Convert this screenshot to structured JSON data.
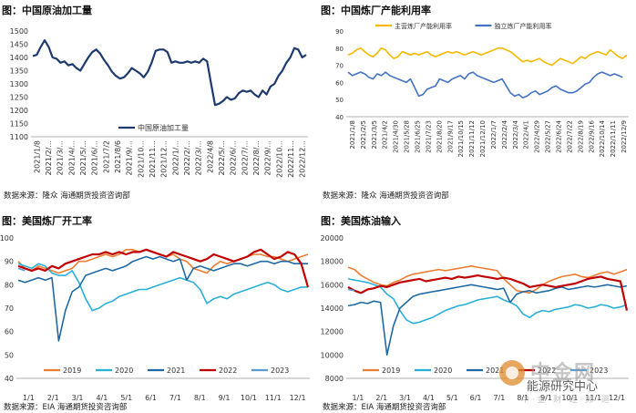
{
  "charts": [
    {
      "heading": "图：中国原油加工量",
      "source": "数据来源：隆众    海通期货投资咨询部",
      "chart_data": {
        "type": "line",
        "ylim": [
          1100,
          1500
        ],
        "yticks": [
          1100,
          1150,
          1200,
          1250,
          1300,
          1350,
          1400,
          1450,
          1500
        ],
        "xticks": [
          "2021/1/8",
          "2021/2/...",
          "2021/3/...",
          "2021/4/...",
          "2021/5/...",
          "2021/6/...",
          "2021/7/2",
          "2021/8/6",
          "2021/9/...",
          "2021/10...",
          "2021/11...",
          "2021/12...",
          "2022/1/...",
          "2022/2/...",
          "2022/3/...",
          "2022/4/8",
          "2022/5/...",
          "2022/6/...",
          "2022/7/...",
          "2022/8/...",
          "2022/9/...",
          "2022/10...",
          "2022/11...",
          "2022/12..."
        ],
        "legend": "bottom",
        "series": [
          {
            "name": "中国原油加工量",
            "color": "#1f3a6e",
            "values": [
              1405,
              1410,
              1440,
              1465,
              1440,
              1400,
              1395,
              1380,
              1385,
              1370,
              1375,
              1360,
              1350,
              1375,
              1400,
              1420,
              1430,
              1415,
              1390,
              1370,
              1345,
              1330,
              1320,
              1325,
              1340,
              1360,
              1350,
              1340,
              1325,
              1345,
              1380,
              1425,
              1430,
              1430,
              1420,
              1380,
              1385,
              1380,
              1380,
              1385,
              1380,
              1385,
              1380,
              1395,
              1385,
              1300,
              1220,
              1225,
              1235,
              1250,
              1240,
              1245,
              1265,
              1275,
              1270,
              1275,
              1260,
              1250,
              1275,
              1260,
              1290,
              1300,
              1330,
              1350,
              1380,
              1400,
              1435,
              1430,
              1400,
              1410
            ]
          }
        ]
      }
    },
    {
      "heading": "图：中国炼厂产能利用率",
      "source": "数据来源：隆众    海通期货投资咨询部",
      "chart_data": {
        "type": "line",
        "ylim": [
          40,
          90
        ],
        "yticks": [
          40,
          50,
          60,
          70,
          80,
          90
        ],
        "xticks": [
          "2021/1/8",
          "2021/2/5",
          "2021/3/5",
          "2021/4/2",
          "2021/4/30",
          "2021/5/28",
          "2021/6/25",
          "2021/7/23",
          "2021/8/20",
          "2021/9/17",
          "2021/10/15",
          "2021/11/12",
          "2021/12/10",
          "2022/1/7",
          "2022/2/4",
          "2022/3/4",
          "2022/4/1",
          "2022/4/29",
          "2022/5/27",
          "2022/6/24",
          "2022/7/22",
          "2022/8/19",
          "2022/9/16",
          "2022/10/14",
          "2022/11/11",
          "2022/12/9"
        ],
        "legend": "top",
        "series": [
          {
            "name": "主营炼厂产能利用率",
            "color": "#f5b800",
            "values": [
              76,
              77,
              79,
              80,
              78,
              76,
              75,
              77,
              80,
              79,
              76,
              74,
              75,
              78,
              77,
              76,
              77,
              76,
              77,
              78,
              76,
              75,
              76,
              77,
              78,
              77,
              78,
              77,
              76,
              77,
              78,
              77,
              76,
              77,
              78,
              79,
              80,
              80,
              79,
              78,
              76,
              74,
              72,
              73,
              72,
              73,
              74,
              72,
              71,
              70,
              72,
              74,
              73,
              72,
              71,
              73,
              75,
              74,
              76,
              77,
              78,
              77,
              76,
              79,
              77,
              75,
              74,
              76
            ]
          },
          {
            "name": "独立炼厂产能利用率",
            "color": "#4472c4",
            "values": [
              66,
              64,
              65,
              66,
              65,
              63,
              62,
              65,
              64,
              66,
              64,
              63,
              62,
              61,
              60,
              62,
              57,
              52,
              53,
              56,
              57,
              58,
              62,
              61,
              60,
              62,
              63,
              64,
              62,
              65,
              66,
              64,
              63,
              62,
              61,
              60,
              61,
              62,
              58,
              54,
              52,
              53,
              51,
              52,
              54,
              55,
              53,
              54,
              55,
              57,
              58,
              56,
              55,
              54,
              54,
              55,
              57,
              59,
              60,
              63,
              65,
              66,
              65,
              64,
              65,
              64,
              63
            ]
          }
        ]
      }
    },
    {
      "heading": "图：美国炼厂开工率",
      "source": "数据来源：EIA    海通期货投资咨询部",
      "chart_data": {
        "type": "line",
        "ylim": [
          40,
          100
        ],
        "yticks": [
          40,
          50,
          60,
          70,
          80,
          90,
          100
        ],
        "xticks": [
          "1/1",
          "2/1",
          "3/1",
          "4/1",
          "5/1",
          "6/1",
          "7/1",
          "8/1",
          "9/1",
          "10/1",
          "11/1",
          "12/1"
        ],
        "legend": "bottom",
        "series": [
          {
            "name": "2019",
            "color": "#ed7d31",
            "values": [
              90,
              87,
              86,
              88,
              87,
              86,
              85,
              86,
              87,
              90,
              90,
              91,
              92,
              93,
              92,
              93,
              95,
              95,
              94,
              95,
              94,
              93,
              92,
              93,
              91,
              90,
              87,
              86,
              85,
              88,
              90,
              89,
              90,
              91,
              92,
              93,
              93,
              92,
              92,
              91,
              90,
              91,
              92,
              93
            ]
          },
          {
            "name": "2020",
            "color": "#29b0d8",
            "values": [
              89,
              88,
              87,
              89,
              88,
              85,
              84,
              84,
              86,
              81,
              74,
              69,
              70,
              72,
              73,
              75,
              76,
              77,
              78,
              78,
              79,
              80,
              81,
              82,
              83,
              82,
              81,
              78,
              72,
              74,
              75,
              74,
              76,
              77,
              78,
              79,
              80,
              81,
              80,
              78,
              77,
              78,
              79,
              79
            ]
          },
          {
            "name": "2021",
            "color": "#1f6aa5",
            "values": [
              82,
              81,
              82,
              83,
              82,
              83,
              56,
              69,
              77,
              79,
              84,
              85,
              86,
              87,
              86,
              87,
              88,
              90,
              91,
              92,
              91,
              92,
              91,
              90,
              91,
              82,
              87,
              88,
              87,
              86,
              87,
              88,
              89,
              89,
              88,
              89,
              90,
              90,
              89,
              90,
              90,
              89,
              89,
              89
            ]
          },
          {
            "name": "2022",
            "color": "#c00000",
            "values": [
              88,
              87,
              86,
              87,
              86,
              88,
              87,
              89,
              90,
              91,
              92,
              93,
              93,
              94,
              93,
              94,
              93,
              94,
              94,
              95,
              94,
              93,
              92,
              94,
              93,
              92,
              91,
              90,
              91,
              93,
              92,
              91,
              90,
              91,
              92,
              94,
              95,
              93,
              91,
              92,
              94,
              93,
              89,
              79
            ]
          },
          {
            "name": "2023",
            "color": "#5b9bd5",
            "values": [
              87,
              86
            ]
          }
        ]
      }
    },
    {
      "heading": "图：美国炼油输入",
      "source": "数据来源：EIA    海通期货投资咨询部",
      "chart_data": {
        "type": "line",
        "ylim": [
          8000,
          20000
        ],
        "yticks": [
          8000,
          10000,
          12000,
          14000,
          16000,
          18000,
          20000
        ],
        "xticks": [
          "1/1",
          "2/1",
          "3/1",
          "4/1",
          "5/1",
          "6/1",
          "7/1",
          "8/1",
          "9/1",
          "10/1",
          "11/1",
          "12/1"
        ],
        "legend": "bottom",
        "series": [
          {
            "name": "2019",
            "color": "#ed7d31",
            "values": [
              17500,
              17300,
              16800,
              16500,
              16200,
              16000,
              15900,
              16200,
              16400,
              16700,
              16900,
              17000,
              17100,
              17200,
              17300,
              17200,
              17300,
              17400,
              17500,
              17600,
              17500,
              17400,
              17300,
              17200,
              16500,
              16000,
              15500,
              15400,
              15300,
              15600,
              16000,
              16300,
              16500,
              16700,
              16800,
              16900,
              16700,
              16600,
              16800,
              17000,
              17100,
              16900,
              17100,
              17300
            ]
          },
          {
            "name": "2020",
            "color": "#29b0d8",
            "values": [
              16500,
              16400,
              16300,
              16200,
              16000,
              15800,
              15200,
              14800,
              13800,
              13000,
              12700,
              12800,
              13000,
              13200,
              13500,
              13800,
              14000,
              14200,
              14300,
              14500,
              14700,
              14800,
              14900,
              15000,
              14700,
              14500,
              14200,
              13500,
              13200,
              13600,
              13800,
              13700,
              13900,
              14000,
              14100,
              14300,
              14200,
              14000,
              14100,
              14300,
              14200,
              14000,
              14100,
              14300
            ]
          },
          {
            "name": "2021",
            "color": "#1f6aa5",
            "values": [
              14200,
              14300,
              14500,
              14400,
              14600,
              14500,
              10000,
              12500,
              14000,
              14500,
              15000,
              15200,
              15300,
              15400,
              15500,
              15600,
              15700,
              15800,
              15900,
              16000,
              15900,
              15800,
              15700,
              15600,
              15700,
              14500,
              15200,
              15400,
              15500,
              15300,
              15400,
              15500,
              15700,
              15800,
              15600,
              15700,
              15800,
              15900,
              15800,
              15900,
              16000,
              15900,
              15800,
              15900
            ]
          },
          {
            "name": "2022",
            "color": "#c00000",
            "values": [
              15800,
              15500,
              15300,
              15600,
              15700,
              15900,
              15800,
              16000,
              16200,
              16300,
              16400,
              16500,
              16300,
              16400,
              16500,
              16600,
              16500,
              16700,
              16600,
              16700,
              16800,
              16700,
              16600,
              16500,
              16600,
              16500,
              16300,
              16100,
              15800,
              15900,
              16000,
              15900,
              15800,
              15900,
              16000,
              16100,
              16300,
              16500,
              16600,
              16700,
              16500,
              16400,
              16300,
              13800
            ]
          },
          {
            "name": "2023",
            "color": "#5b9bd5",
            "values": [
              15600,
              15500
            ]
          }
        ]
      }
    }
  ],
  "watermark": {
    "logo_text": "中金网",
    "sub_text": "中 · 金 · 财 · 经 · 频 · 道",
    "overlay_text": "能源研究中心"
  }
}
